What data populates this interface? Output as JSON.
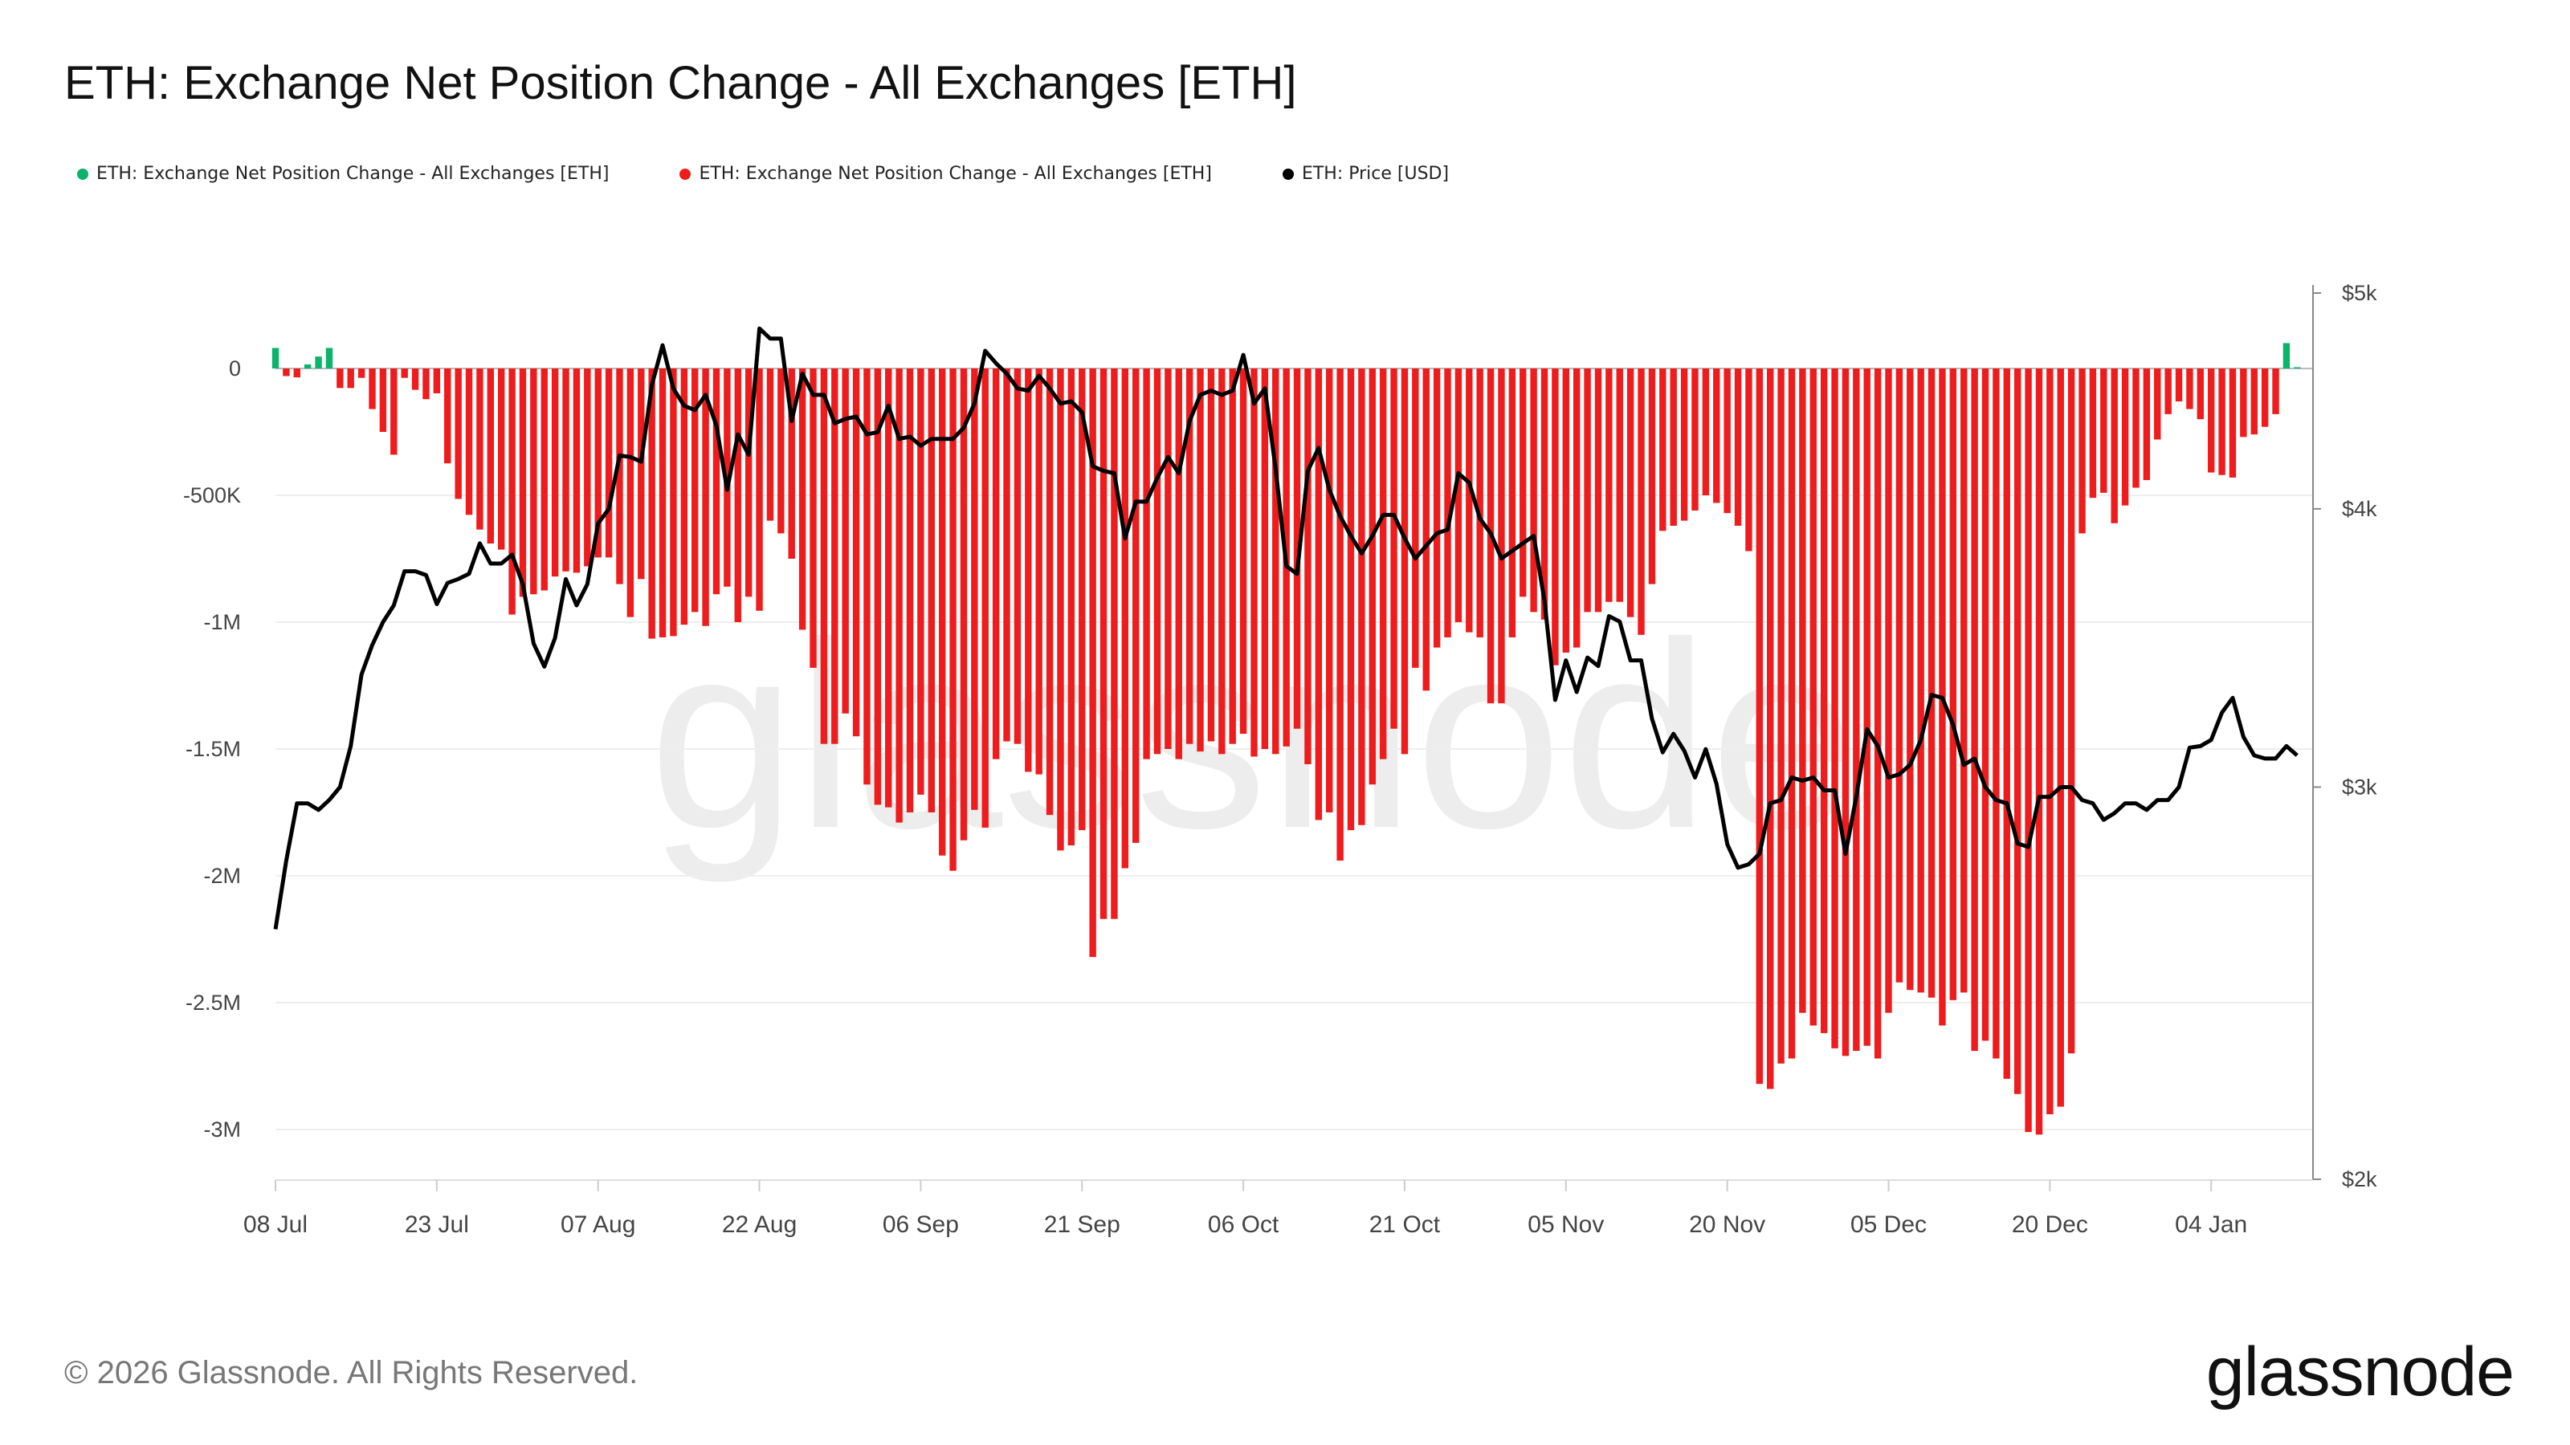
{
  "title": "ETH: Exchange Net Position Change - All Exchanges [ETH]",
  "legend": [
    {
      "label": "ETH: Exchange Net Position Change - All Exchanges [ETH]",
      "color": "#0bb36b"
    },
    {
      "label": "ETH: Exchange Net Position Change - All Exchanges [ETH]",
      "color": "#ee1c1c"
    },
    {
      "label": "ETH: Price [USD]",
      "color": "#000000"
    }
  ],
  "footer": "© 2026 Glassnode. All Rights Reserved.",
  "logo": "glassnode",
  "watermark": "glassnode",
  "chart_data": {
    "type": "bar+line",
    "title": "ETH: Exchange Net Position Change - All Exchanges [ETH]",
    "x_tick_labels": [
      "08 Jul",
      "23 Jul",
      "07 Aug",
      "22 Aug",
      "06 Sep",
      "21 Sep",
      "06 Oct",
      "21 Oct",
      "05 Nov",
      "20 Nov",
      "05 Dec",
      "20 Dec",
      "04 Jan"
    ],
    "x_ticks": [
      "2025-07-08",
      "2025-07-23",
      "2025-08-07",
      "2025-08-22",
      "2025-09-06",
      "2025-09-21",
      "2025-10-06",
      "2025-10-21",
      "2025-11-05",
      "2025-11-20",
      "2025-12-05",
      "2025-12-20",
      "2026-01-04"
    ],
    "left_axis": {
      "ylim": [
        -3200000,
        300000
      ],
      "ticks": [
        0,
        -500000,
        -1000000,
        -1500000,
        -2000000,
        -2500000,
        -3000000
      ],
      "tick_labels": [
        "0",
        "-500K",
        "-1M",
        "-1.5M",
        "-2M",
        "-2.5M",
        "-3M"
      ]
    },
    "right_axis": {
      "scale": "log",
      "ylim": [
        2000,
        5000
      ],
      "ticks": [
        5000,
        4000,
        3000,
        2000
      ],
      "tick_labels": [
        "$5k",
        "$4k",
        "$3k",
        "$2k"
      ]
    },
    "grid": true,
    "legend_position": "top-left",
    "positive_color": "#0bb36b",
    "negative_color": "#ee1c1c",
    "price_color": "#000000",
    "dates": [
      "2025-07-08",
      "2025-07-09",
      "2025-07-10",
      "2025-07-11",
      "2025-07-12",
      "2025-07-13",
      "2025-07-14",
      "2025-07-15",
      "2025-07-16",
      "2025-07-17",
      "2025-07-18",
      "2025-07-19",
      "2025-07-20",
      "2025-07-21",
      "2025-07-22",
      "2025-07-23",
      "2025-07-24",
      "2025-07-25",
      "2025-07-26",
      "2025-07-27",
      "2025-07-28",
      "2025-07-29",
      "2025-07-30",
      "2025-07-31",
      "2025-08-01",
      "2025-08-02",
      "2025-08-03",
      "2025-08-04",
      "2025-08-05",
      "2025-08-06",
      "2025-08-07",
      "2025-08-08",
      "2025-08-09",
      "2025-08-10",
      "2025-08-11",
      "2025-08-12",
      "2025-08-13",
      "2025-08-14",
      "2025-08-15",
      "2025-08-16",
      "2025-08-17",
      "2025-08-18",
      "2025-08-19",
      "2025-08-20",
      "2025-08-21",
      "2025-08-22",
      "2025-08-23",
      "2025-08-24",
      "2025-08-25",
      "2025-08-26",
      "2025-08-27",
      "2025-08-28",
      "2025-08-29",
      "2025-08-30",
      "2025-08-31",
      "2025-09-01",
      "2025-09-02",
      "2025-09-03",
      "2025-09-04",
      "2025-09-05",
      "2025-09-06",
      "2025-09-07",
      "2025-09-08",
      "2025-09-09",
      "2025-09-10",
      "2025-09-11",
      "2025-09-12",
      "2025-09-13",
      "2025-09-14",
      "2025-09-15",
      "2025-09-16",
      "2025-09-17",
      "2025-09-18",
      "2025-09-19",
      "2025-09-20",
      "2025-09-21",
      "2025-09-22",
      "2025-09-23",
      "2025-09-24",
      "2025-09-25",
      "2025-09-26",
      "2025-09-27",
      "2025-09-28",
      "2025-09-29",
      "2025-09-30",
      "2025-10-01",
      "2025-10-02",
      "2025-10-03",
      "2025-10-04",
      "2025-10-05",
      "2025-10-06",
      "2025-10-07",
      "2025-10-08",
      "2025-10-09",
      "2025-10-10",
      "2025-10-11",
      "2025-10-12",
      "2025-10-13",
      "2025-10-14",
      "2025-10-15",
      "2025-10-16",
      "2025-10-17",
      "2025-10-18",
      "2025-10-19",
      "2025-10-20",
      "2025-10-21",
      "2025-10-22",
      "2025-10-23",
      "2025-10-24",
      "2025-10-25",
      "2025-10-26",
      "2025-10-27",
      "2025-10-28",
      "2025-10-29",
      "2025-10-30",
      "2025-10-31",
      "2025-11-01",
      "2025-11-02",
      "2025-11-03",
      "2025-11-04",
      "2025-11-05",
      "2025-11-06",
      "2025-11-07",
      "2025-11-08",
      "2025-11-09",
      "2025-11-10",
      "2025-11-11",
      "2025-11-12",
      "2025-11-13",
      "2025-11-14",
      "2025-11-15",
      "2025-11-16",
      "2025-11-17",
      "2025-11-18",
      "2025-11-19",
      "2025-11-20",
      "2025-11-21",
      "2025-11-22",
      "2025-11-23",
      "2025-11-24",
      "2025-11-25",
      "2025-11-26",
      "2025-11-27",
      "2025-11-28",
      "2025-11-29",
      "2025-11-30",
      "2025-12-01",
      "2025-12-02",
      "2025-12-03",
      "2025-12-04",
      "2025-12-05",
      "2025-12-06",
      "2025-12-07",
      "2025-12-08",
      "2025-12-09",
      "2025-12-10",
      "2025-12-11",
      "2025-12-12",
      "2025-12-13",
      "2025-12-14",
      "2025-12-15",
      "2025-12-16",
      "2025-12-17",
      "2025-12-18",
      "2025-12-19",
      "2025-12-20",
      "2025-12-21",
      "2025-12-22",
      "2025-12-23",
      "2025-12-24",
      "2025-12-25",
      "2025-12-26",
      "2025-12-27",
      "2025-12-28",
      "2025-12-29",
      "2025-12-30",
      "2025-12-31",
      "2026-01-01",
      "2026-01-02",
      "2026-01-03",
      "2026-01-04",
      "2026-01-05",
      "2026-01-06",
      "2026-01-07",
      "2026-01-08",
      "2026-01-09",
      "2026-01-10",
      "2026-01-11",
      "2026-01-12"
    ],
    "net_position_change": [
      81000,
      -30000,
      -35000,
      16000,
      47000,
      81000,
      -77000,
      -77000,
      -37000,
      -160000,
      -250000,
      -340000,
      -37000,
      -84000,
      -121000,
      -98000,
      -374000,
      -514000,
      -577000,
      -635000,
      -690000,
      -714000,
      -970000,
      -900000,
      -890000,
      -875000,
      -820000,
      -800000,
      -805000,
      -780000,
      -745000,
      -745000,
      -850000,
      -980000,
      -830000,
      -1065000,
      -1060000,
      -1055000,
      -1010000,
      -960000,
      -1015000,
      -890000,
      -860000,
      -1000000,
      -900000,
      -955000,
      -600000,
      -650000,
      -750000,
      -1030000,
      -1180000,
      -1480000,
      -1480000,
      -1360000,
      -1450000,
      -1640000,
      -1720000,
      -1730000,
      -1790000,
      -1750000,
      -1680000,
      -1750000,
      -1920000,
      -1980000,
      -1860000,
      -1740000,
      -1810000,
      -1540000,
      -1470000,
      -1480000,
      -1590000,
      -1600000,
      -1760000,
      -1900000,
      -1880000,
      -1820000,
      -2320000,
      -2170000,
      -2170000,
      -1970000,
      -1870000,
      -1540000,
      -1520000,
      -1500000,
      -1540000,
      -1480000,
      -1510000,
      -1470000,
      -1520000,
      -1480000,
      -1440000,
      -1530000,
      -1500000,
      -1520000,
      -1490000,
      -1420000,
      -1560000,
      -1780000,
      -1750000,
      -1940000,
      -1820000,
      -1800000,
      -1640000,
      -1540000,
      -1420000,
      -1520000,
      -1180000,
      -1270000,
      -1100000,
      -1060000,
      -1000000,
      -1040000,
      -1060000,
      -1320000,
      -1320000,
      -1060000,
      -900000,
      -960000,
      -990000,
      -1170000,
      -1120000,
      -1100000,
      -960000,
      -960000,
      -920000,
      -920000,
      -980000,
      -1050000,
      -850000,
      -640000,
      -620000,
      -600000,
      -560000,
      -500000,
      -530000,
      -570000,
      -620000,
      -720000,
      -2820000,
      -2840000,
      -2740000,
      -2720000,
      -2540000,
      -2590000,
      -2620000,
      -2680000,
      -2710000,
      -2690000,
      -2670000,
      -2720000,
      -2540000,
      -2420000,
      -2450000,
      -2460000,
      -2480000,
      -2590000,
      -2490000,
      -2460000,
      -2690000,
      -2650000,
      -2720000,
      -2800000,
      -2860000,
      -3010000,
      -3020000,
      -2940000,
      -2910000,
      -2700000,
      -650000,
      -510000,
      -490000,
      -610000,
      -540000,
      -470000,
      -440000,
      -280000,
      -180000,
      -130000,
      -160000,
      -200000,
      -410000,
      -420000,
      -430000,
      -270000,
      -260000,
      -230000,
      -180000,
      100000,
      5000
    ],
    "price_usd": [
      2590,
      2780,
      2950,
      2950,
      2930,
      2960,
      3000,
      3130,
      3370,
      3475,
      3558,
      3620,
      3750,
      3750,
      3735,
      3625,
      3705,
      3720,
      3740,
      3860,
      3780,
      3780,
      3815,
      3700,
      3480,
      3398,
      3500,
      3720,
      3620,
      3700,
      3940,
      4000,
      4227,
      4220,
      4200,
      4547,
      4737,
      4530,
      4450,
      4430,
      4500,
      4360,
      4080,
      4320,
      4230,
      4820,
      4770,
      4770,
      4380,
      4600,
      4500,
      4500,
      4370,
      4390,
      4400,
      4320,
      4330,
      4450,
      4300,
      4310,
      4270,
      4300,
      4300,
      4300,
      4350,
      4460,
      4710,
      4650,
      4600,
      4530,
      4520,
      4590,
      4530,
      4460,
      4470,
      4420,
      4180,
      4160,
      4150,
      3880,
      4030,
      4030,
      4130,
      4220,
      4150,
      4380,
      4500,
      4520,
      4500,
      4520,
      4690,
      4460,
      4530,
      4170,
      3770,
      3740,
      4160,
      4260,
      4080,
      3970,
      3890,
      3820,
      3890,
      3975,
      3975,
      3880,
      3800,
      3850,
      3900,
      3915,
      4150,
      4110,
      3960,
      3900,
      3800,
      3830,
      3860,
      3890,
      3640,
      3283,
      3420,
      3310,
      3430,
      3400,
      3580,
      3560,
      3420,
      3420,
      3220,
      3110,
      3170,
      3115,
      3030,
      3120,
      3010,
      2828,
      2760,
      2770,
      2800,
      2950,
      2960,
      3030,
      3020,
      3030,
      2990,
      2990,
      2800,
      2970,
      3185,
      3130,
      3030,
      3040,
      3070,
      3150,
      3300,
      3290,
      3200,
      3070,
      3090,
      3000,
      2960,
      2950,
      2830,
      2820,
      2970,
      2970,
      3000,
      3000,
      2960,
      2950,
      2900,
      2920,
      2950,
      2950,
      2930,
      2960,
      2960,
      3000,
      3125,
      3130,
      3150,
      3240,
      3290,
      3160,
      3100,
      3090,
      3090,
      3130,
      3100
    ]
  }
}
